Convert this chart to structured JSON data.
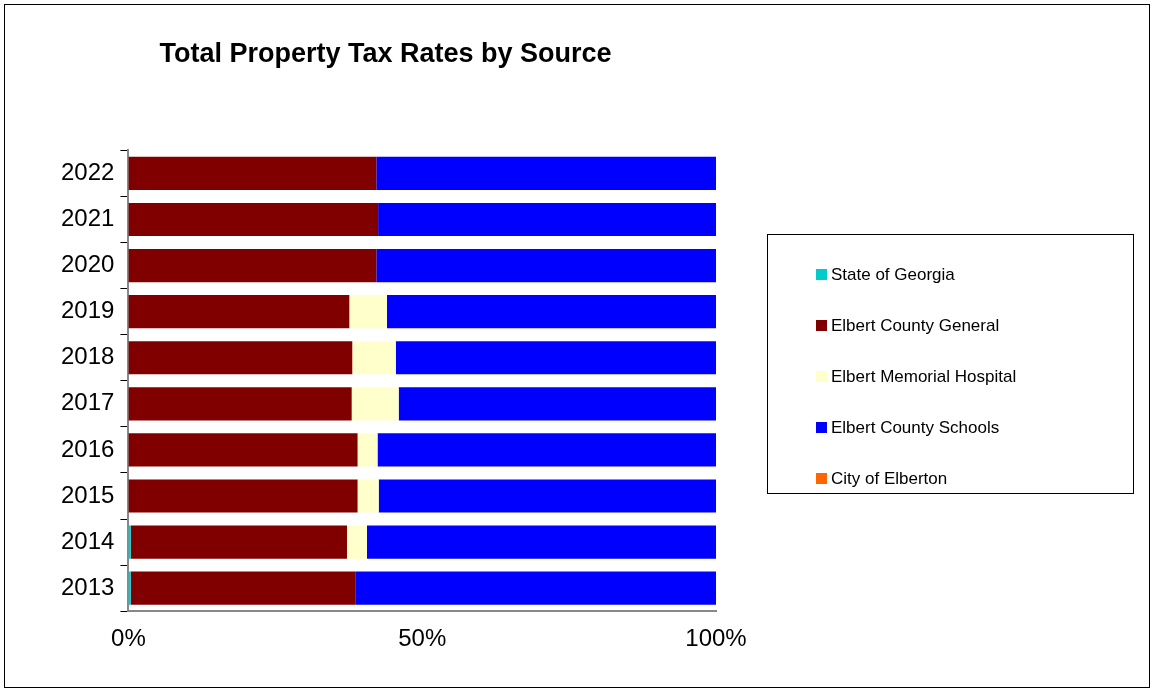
{
  "chart_data": {
    "type": "bar",
    "title": "Total Property Tax Rates by Source",
    "orientation": "horizontal",
    "stacked": true,
    "categories": [
      "2022",
      "2021",
      "2020",
      "2019",
      "2018",
      "2017",
      "2016",
      "2015",
      "2014",
      "2013"
    ],
    "series": [
      {
        "name": "State of Georgia",
        "color": "#00cccc",
        "values": [
          0,
          0,
          0,
          0,
          0,
          0,
          0,
          0,
          0.4,
          0.4
        ]
      },
      {
        "name": "Elbert County General",
        "color": "#800000",
        "values": [
          42.2,
          42.5,
          42.2,
          37.6,
          38.1,
          38.0,
          39.0,
          39.0,
          36.8,
          38.3
        ]
      },
      {
        "name": "Elbert Memorial Hospital",
        "color": "#ffffcc",
        "values": [
          0,
          0,
          0,
          6.4,
          7.4,
          8.0,
          3.4,
          3.6,
          3.4,
          0
        ]
      },
      {
        "name": "Elbert County Schools",
        "color": "#0000ff",
        "values": [
          57.8,
          57.5,
          57.8,
          56.0,
          54.5,
          54.0,
          57.6,
          57.4,
          59.4,
          61.3
        ]
      },
      {
        "name": "City of Elberton",
        "color": "#ff6600",
        "values": [
          0,
          0,
          0,
          0,
          0,
          0,
          0,
          0,
          0,
          0
        ]
      }
    ],
    "xlim": [
      0,
      100
    ],
    "xticks": [
      {
        "value": 0,
        "label": "0%"
      },
      {
        "value": 50,
        "label": "50%"
      },
      {
        "value": 100,
        "label": "100%"
      }
    ],
    "grid": false,
    "legend": "right"
  }
}
